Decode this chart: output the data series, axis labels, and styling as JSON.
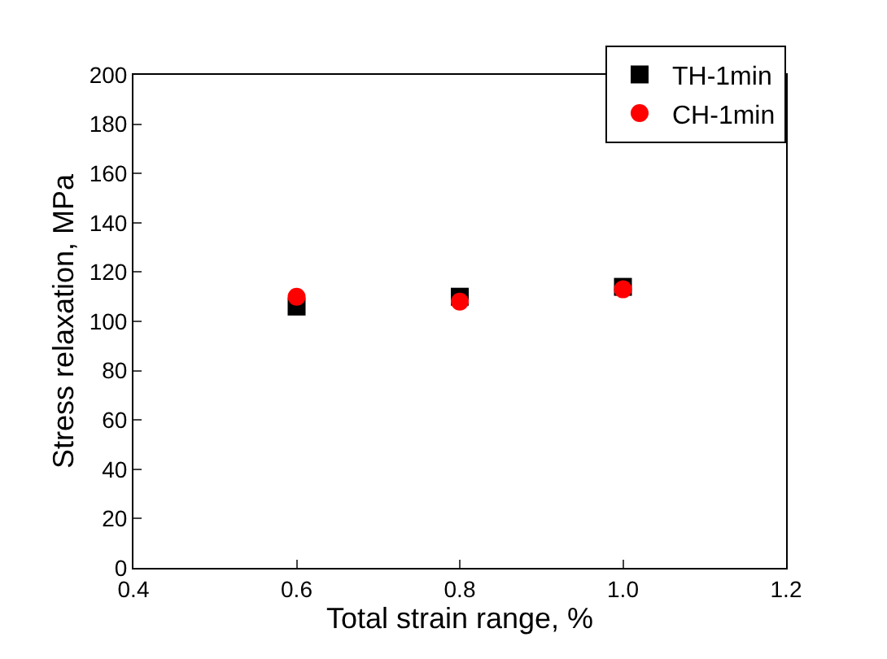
{
  "chart_data": {
    "type": "scatter",
    "xlabel": "Total strain range, %",
    "ylabel": "Stress relaxation, MPa",
    "xlim": [
      0.4,
      1.2
    ],
    "xticks": [
      0.4,
      0.6,
      0.8,
      {
        "value": 1,
        "label": "1.0"
      },
      1.2
    ],
    "ylim": [
      0,
      200
    ],
    "yticks": [
      0,
      20,
      40,
      60,
      80,
      100,
      120,
      140,
      160,
      180,
      200
    ],
    "x": [
      0.6,
      0.8,
      1.0
    ],
    "legend": "top right",
    "series": [
      {
        "name": "TH-1min",
        "color": "#000000",
        "marker": "square",
        "values": [
          106,
          110,
          114
        ]
      },
      {
        "name": "CH-1min",
        "color": "#ff0000",
        "marker": "circle",
        "values": [
          110,
          108,
          113
        ]
      }
    ]
  }
}
